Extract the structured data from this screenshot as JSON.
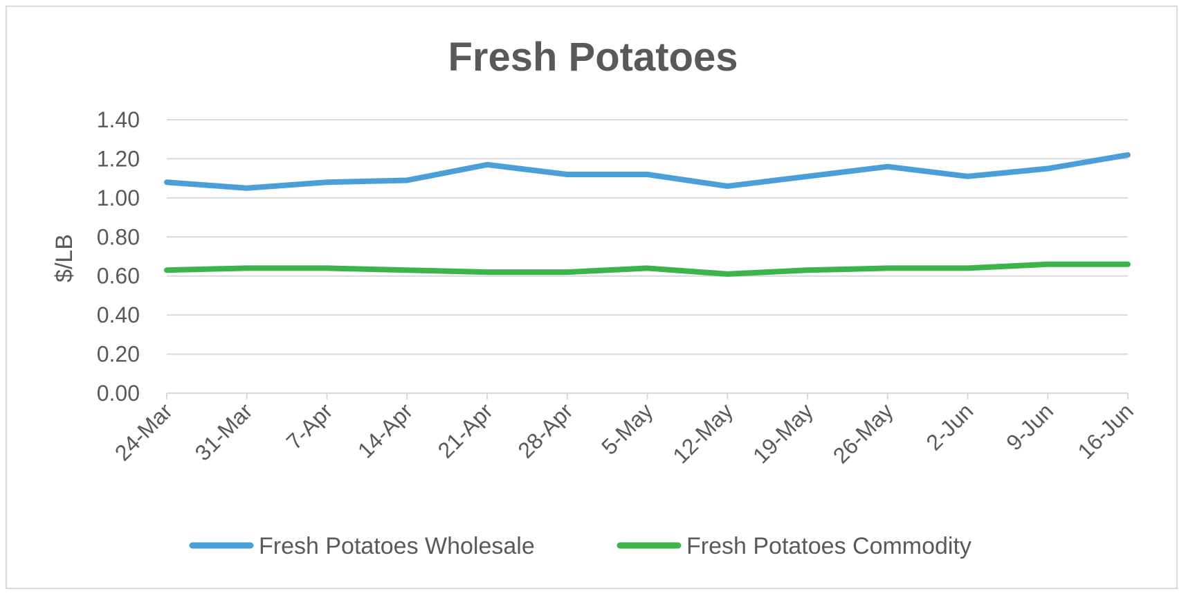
{
  "chart_data": {
    "type": "line",
    "title": "Fresh Potatoes",
    "xlabel": "",
    "ylabel": "$/LB",
    "ylim": [
      0,
      1.4
    ],
    "ytick_step": 0.2,
    "categories": [
      "24-Mar",
      "31-Mar",
      "7-Apr",
      "14-Apr",
      "21-Apr",
      "28-Apr",
      "5-May",
      "12-May",
      "19-May",
      "26-May",
      "2-Jun",
      "9-Jun",
      "16-Jun"
    ],
    "series": [
      {
        "name": "Fresh Potatoes Wholesale",
        "color": "#4a9fd9",
        "values": [
          1.08,
          1.05,
          1.08,
          1.09,
          1.17,
          1.12,
          1.12,
          1.06,
          1.11,
          1.16,
          1.11,
          1.15,
          1.22
        ]
      },
      {
        "name": "Fresh Potatoes Commodity",
        "color": "#3cb449",
        "values": [
          0.63,
          0.64,
          0.64,
          0.63,
          0.62,
          0.62,
          0.64,
          0.61,
          0.63,
          0.64,
          0.64,
          0.66,
          0.66
        ]
      }
    ],
    "grid": true,
    "legend_position": "bottom"
  }
}
